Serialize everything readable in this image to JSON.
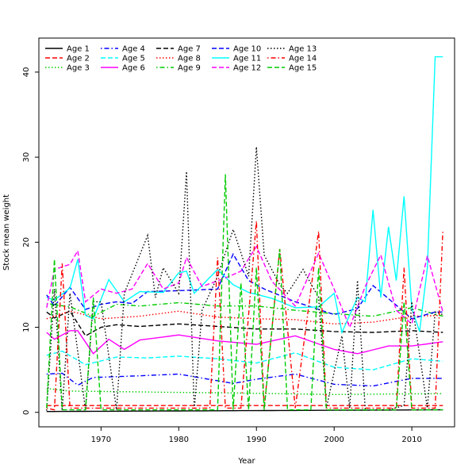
{
  "chart_data": {
    "type": "line",
    "title": "",
    "xlabel": "Year",
    "ylabel": "Stock mean weight",
    "xlim": [
      1963,
      2014
    ],
    "ylim": [
      0,
      42
    ],
    "x_ticks": [
      1970,
      1980,
      1990,
      2000,
      2010
    ],
    "y_ticks": [
      0,
      10,
      20,
      30,
      40
    ],
    "grid": false,
    "legend_position": "top-left",
    "series": [
      {
        "name": "Age 1",
        "color": "#000000",
        "dash": "solid",
        "knots": [
          [
            1963,
            0.1
          ],
          [
            2014,
            0.3
          ]
        ]
      },
      {
        "name": "Age 2",
        "color": "#ff0000",
        "dash": "dashed",
        "knots": [
          [
            1963,
            0.8
          ],
          [
            2014,
            0.8
          ]
        ]
      },
      {
        "name": "Age 3",
        "color": "#00cc00",
        "dash": "dotted",
        "knots": [
          [
            1963,
            2.8
          ],
          [
            1966,
            2.5
          ],
          [
            1975,
            2.4
          ],
          [
            1985,
            2.3
          ],
          [
            2000,
            2.1
          ],
          [
            2014,
            2.2
          ]
        ]
      },
      {
        "name": "Age 4",
        "color": "#0000ff",
        "dash": "dotdash",
        "knots": [
          [
            1963,
            4.5
          ],
          [
            1965,
            4.6
          ],
          [
            1967,
            3.2
          ],
          [
            1969,
            4.1
          ],
          [
            1975,
            4.3
          ],
          [
            1980,
            4.5
          ],
          [
            1987,
            3.4
          ],
          [
            1990,
            3.9
          ],
          [
            1995,
            4.5
          ],
          [
            2000,
            3.3
          ],
          [
            2005,
            3.1
          ],
          [
            2010,
            4.0
          ],
          [
            2014,
            4.0
          ]
        ]
      },
      {
        "name": "Age 5",
        "color": "#00ffff",
        "dash": "dashed",
        "knots": [
          [
            1963,
            6.7
          ],
          [
            1965,
            7.2
          ],
          [
            1968,
            5.6
          ],
          [
            1972,
            6.5
          ],
          [
            1976,
            6.4
          ],
          [
            1980,
            6.6
          ],
          [
            1985,
            6.3
          ],
          [
            1990,
            5.8
          ],
          [
            1995,
            7.0
          ],
          [
            2000,
            5.3
          ],
          [
            2005,
            5.0
          ],
          [
            2010,
            6.3
          ],
          [
            2014,
            6.0
          ]
        ]
      },
      {
        "name": "Age 6",
        "color": "#ff00ff",
        "dash": "solid",
        "knots": [
          [
            1963,
            9.4
          ],
          [
            1964,
            8.6
          ],
          [
            1966,
            9.6
          ],
          [
            1967,
            9.6
          ],
          [
            1969,
            6.9
          ],
          [
            1971,
            8.6
          ],
          [
            1973,
            7.4
          ],
          [
            1975,
            8.5
          ],
          [
            1980,
            9.1
          ],
          [
            1985,
            8.4
          ],
          [
            1990,
            8.0
          ],
          [
            1995,
            9.0
          ],
          [
            2000,
            7.4
          ],
          [
            2003,
            6.9
          ],
          [
            2007,
            7.8
          ],
          [
            2010,
            7.8
          ],
          [
            2014,
            8.3
          ]
        ]
      },
      {
        "name": "Age 7",
        "color": "#000000",
        "dash": "dashed",
        "knots": [
          [
            1963,
            11.8
          ],
          [
            1964,
            11.1
          ],
          [
            1966,
            11.9
          ],
          [
            1968,
            9.0
          ],
          [
            1970,
            10.0
          ],
          [
            1972,
            10.3
          ],
          [
            1975,
            10.1
          ],
          [
            1980,
            10.4
          ],
          [
            1985,
            10.1
          ],
          [
            1990,
            9.8
          ],
          [
            1995,
            9.8
          ],
          [
            2000,
            9.5
          ],
          [
            2005,
            9.4
          ],
          [
            2010,
            9.6
          ],
          [
            2014,
            9.4
          ]
        ]
      },
      {
        "name": "Age 8",
        "color": "#ff0000",
        "dash": "dotted",
        "knots": [
          [
            1963,
            11.0
          ],
          [
            1966,
            11.9
          ],
          [
            1970,
            11.0
          ],
          [
            1975,
            11.3
          ],
          [
            1980,
            11.9
          ],
          [
            1985,
            11.2
          ],
          [
            1990,
            11.0
          ],
          [
            1995,
            10.9
          ],
          [
            2000,
            10.4
          ],
          [
            2005,
            10.6
          ],
          [
            2010,
            11.3
          ],
          [
            2014,
            11.4
          ]
        ]
      },
      {
        "name": "Age 9",
        "color": "#00cc00",
        "dash": "dotdash",
        "knots": [
          [
            1963,
            12.8
          ],
          [
            1966,
            12.4
          ],
          [
            1969,
            11.3
          ],
          [
            1972,
            12.7
          ],
          [
            1975,
            12.5
          ],
          [
            1980,
            12.9
          ],
          [
            1985,
            12.5
          ],
          [
            1990,
            12.5
          ],
          [
            1995,
            12.0
          ],
          [
            2000,
            11.6
          ],
          [
            2005,
            11.3
          ],
          [
            2010,
            12.3
          ],
          [
            2014,
            11.3
          ]
        ]
      },
      {
        "name": "Age 10",
        "color": "#0000ff",
        "dash": "dashed",
        "knots": [
          [
            1963,
            13.8
          ],
          [
            1964,
            12.5
          ],
          [
            1966,
            14.7
          ],
          [
            1968,
            12.1
          ],
          [
            1970,
            12.7
          ],
          [
            1972,
            13.0
          ],
          [
            1974,
            12.8
          ],
          [
            1976,
            14.2
          ],
          [
            1980,
            14.3
          ],
          [
            1985,
            14.5
          ],
          [
            1987,
            18.6
          ],
          [
            1989,
            15.5
          ],
          [
            1991,
            14.5
          ],
          [
            1995,
            13.0
          ],
          [
            2000,
            11.5
          ],
          [
            2003,
            12.2
          ],
          [
            2005,
            14.9
          ],
          [
            2008,
            12.6
          ],
          [
            2010,
            11.0
          ],
          [
            2013,
            11.8
          ],
          [
            2014,
            11.8
          ]
        ]
      },
      {
        "name": "Age 11",
        "color": "#00ffff",
        "dash": "solid",
        "knots": [
          [
            1963,
            13.5
          ],
          [
            1964,
            13.2
          ],
          [
            1966,
            14.6
          ],
          [
            1967,
            18.0
          ],
          [
            1968,
            11.4
          ],
          [
            1969,
            11.0
          ],
          [
            1971,
            15.6
          ],
          [
            1973,
            13.0
          ],
          [
            1975,
            14.2
          ],
          [
            1978,
            14.1
          ],
          [
            1980,
            16.4
          ],
          [
            1981,
            16.6
          ],
          [
            1982,
            14.0
          ],
          [
            1985,
            16.8
          ],
          [
            1987,
            15.0
          ],
          [
            1989,
            14.1
          ],
          [
            1992,
            13.4
          ],
          [
            1995,
            12.3
          ],
          [
            1998,
            12.4
          ],
          [
            2000,
            14.0
          ],
          [
            2001,
            9.4
          ],
          [
            2003,
            13.5
          ],
          [
            2004,
            13.0
          ],
          [
            2005,
            23.8
          ],
          [
            2006,
            13.5
          ],
          [
            2007,
            21.8
          ],
          [
            2008,
            15.5
          ],
          [
            2009,
            25.4
          ],
          [
            2010,
            12.2
          ],
          [
            2011,
            9.5
          ],
          [
            2012,
            17.0
          ],
          [
            2013,
            41.8
          ],
          [
            2014,
            41.8
          ]
        ]
      },
      {
        "name": "Age 12",
        "color": "#ff00ff",
        "dash": "dashed",
        "knots": [
          [
            1963,
            12.3
          ],
          [
            1964,
            16.8
          ],
          [
            1966,
            17.4
          ],
          [
            1967,
            19.0
          ],
          [
            1968,
            13.0
          ],
          [
            1970,
            14.5
          ],
          [
            1972,
            14.0
          ],
          [
            1974,
            14.5
          ],
          [
            1976,
            17.5
          ],
          [
            1978,
            14.5
          ],
          [
            1980,
            15.2
          ],
          [
            1981,
            18.2
          ],
          [
            1983,
            14.8
          ],
          [
            1986,
            15.8
          ],
          [
            1988,
            16.6
          ],
          [
            1990,
            19.5
          ],
          [
            1992,
            15.4
          ],
          [
            1995,
            12.5
          ],
          [
            1998,
            18.7
          ],
          [
            2000,
            14.5
          ],
          [
            2002,
            10.0
          ],
          [
            2004,
            14.8
          ],
          [
            2006,
            18.5
          ],
          [
            2008,
            12.0
          ],
          [
            2010,
            10.4
          ],
          [
            2012,
            18.4
          ],
          [
            2014,
            11.8
          ]
        ]
      },
      {
        "name": "Age 13",
        "color": "#000000",
        "dash": "dotted",
        "knots": [
          [
            1963,
            0.2
          ],
          [
            1964,
            14.5
          ],
          [
            1965,
            0.2
          ],
          [
            1966,
            14.0
          ],
          [
            1968,
            0.3
          ],
          [
            1969,
            13.0
          ],
          [
            1970,
            13.0
          ],
          [
            1972,
            0.3
          ],
          [
            1973,
            14.0
          ],
          [
            1976,
            20.8
          ],
          [
            1977,
            13.5
          ],
          [
            1978,
            17.0
          ],
          [
            1980,
            14.0
          ],
          [
            1981,
            28.3
          ],
          [
            1982,
            0.3
          ],
          [
            1983,
            12.0
          ],
          [
            1985,
            16.0
          ],
          [
            1987,
            21.5
          ],
          [
            1989,
            16.0
          ],
          [
            1990,
            31.2
          ],
          [
            1991,
            18.5
          ],
          [
            1993,
            15.0
          ],
          [
            1994,
            14.0
          ],
          [
            1996,
            16.8
          ],
          [
            1998,
            13.5
          ],
          [
            1999,
            0.5
          ],
          [
            2001,
            9.0
          ],
          [
            2002,
            0.5
          ],
          [
            2003,
            15.5
          ],
          [
            2004,
            0.3
          ],
          [
            2007,
            0.3
          ],
          [
            2009,
            0.8
          ],
          [
            2010,
            13.0
          ],
          [
            2012,
            0.5
          ],
          [
            2013,
            11.8
          ],
          [
            2014,
            11.5
          ]
        ]
      },
      {
        "name": "Age 14",
        "color": "#ff0000",
        "dash": "dotdash",
        "knots": [
          [
            1963,
            0.5
          ],
          [
            1964,
            0.3
          ],
          [
            1965,
            17.5
          ],
          [
            1966,
            0.5
          ],
          [
            1975,
            0.5
          ],
          [
            1984,
            0.5
          ],
          [
            1985,
            18.2
          ],
          [
            1986,
            0.5
          ],
          [
            1988,
            0.5
          ],
          [
            1990,
            22.5
          ],
          [
            1991,
            0.5
          ],
          [
            1993,
            19.2
          ],
          [
            1995,
            0.5
          ],
          [
            1998,
            21.3
          ],
          [
            1999,
            0.5
          ],
          [
            2008,
            0.5
          ],
          [
            2009,
            17.0
          ],
          [
            2010,
            0.5
          ],
          [
            2013,
            0.5
          ],
          [
            2014,
            21.5
          ]
        ]
      },
      {
        "name": "Age 15",
        "color": "#00cc00",
        "dash": "dashed",
        "knots": [
          [
            1963,
            0.5
          ],
          [
            1964,
            18.0
          ],
          [
            1965,
            0.3
          ],
          [
            1968,
            0.3
          ],
          [
            1969,
            13.5
          ],
          [
            1970,
            0.3
          ],
          [
            1985,
            0.3
          ],
          [
            1986,
            28.0
          ],
          [
            1987,
            0.3
          ],
          [
            1988,
            15.2
          ],
          [
            1989,
            0.3
          ],
          [
            1990,
            17.0
          ],
          [
            1991,
            0.3
          ],
          [
            1993,
            19.2
          ],
          [
            1994,
            0.3
          ],
          [
            1997,
            0.3
          ],
          [
            1998,
            17.0
          ],
          [
            1999,
            0.3
          ],
          [
            2008,
            0.3
          ],
          [
            2009,
            13.0
          ],
          [
            2010,
            0.3
          ],
          [
            2014,
            0.3
          ]
        ]
      }
    ]
  }
}
